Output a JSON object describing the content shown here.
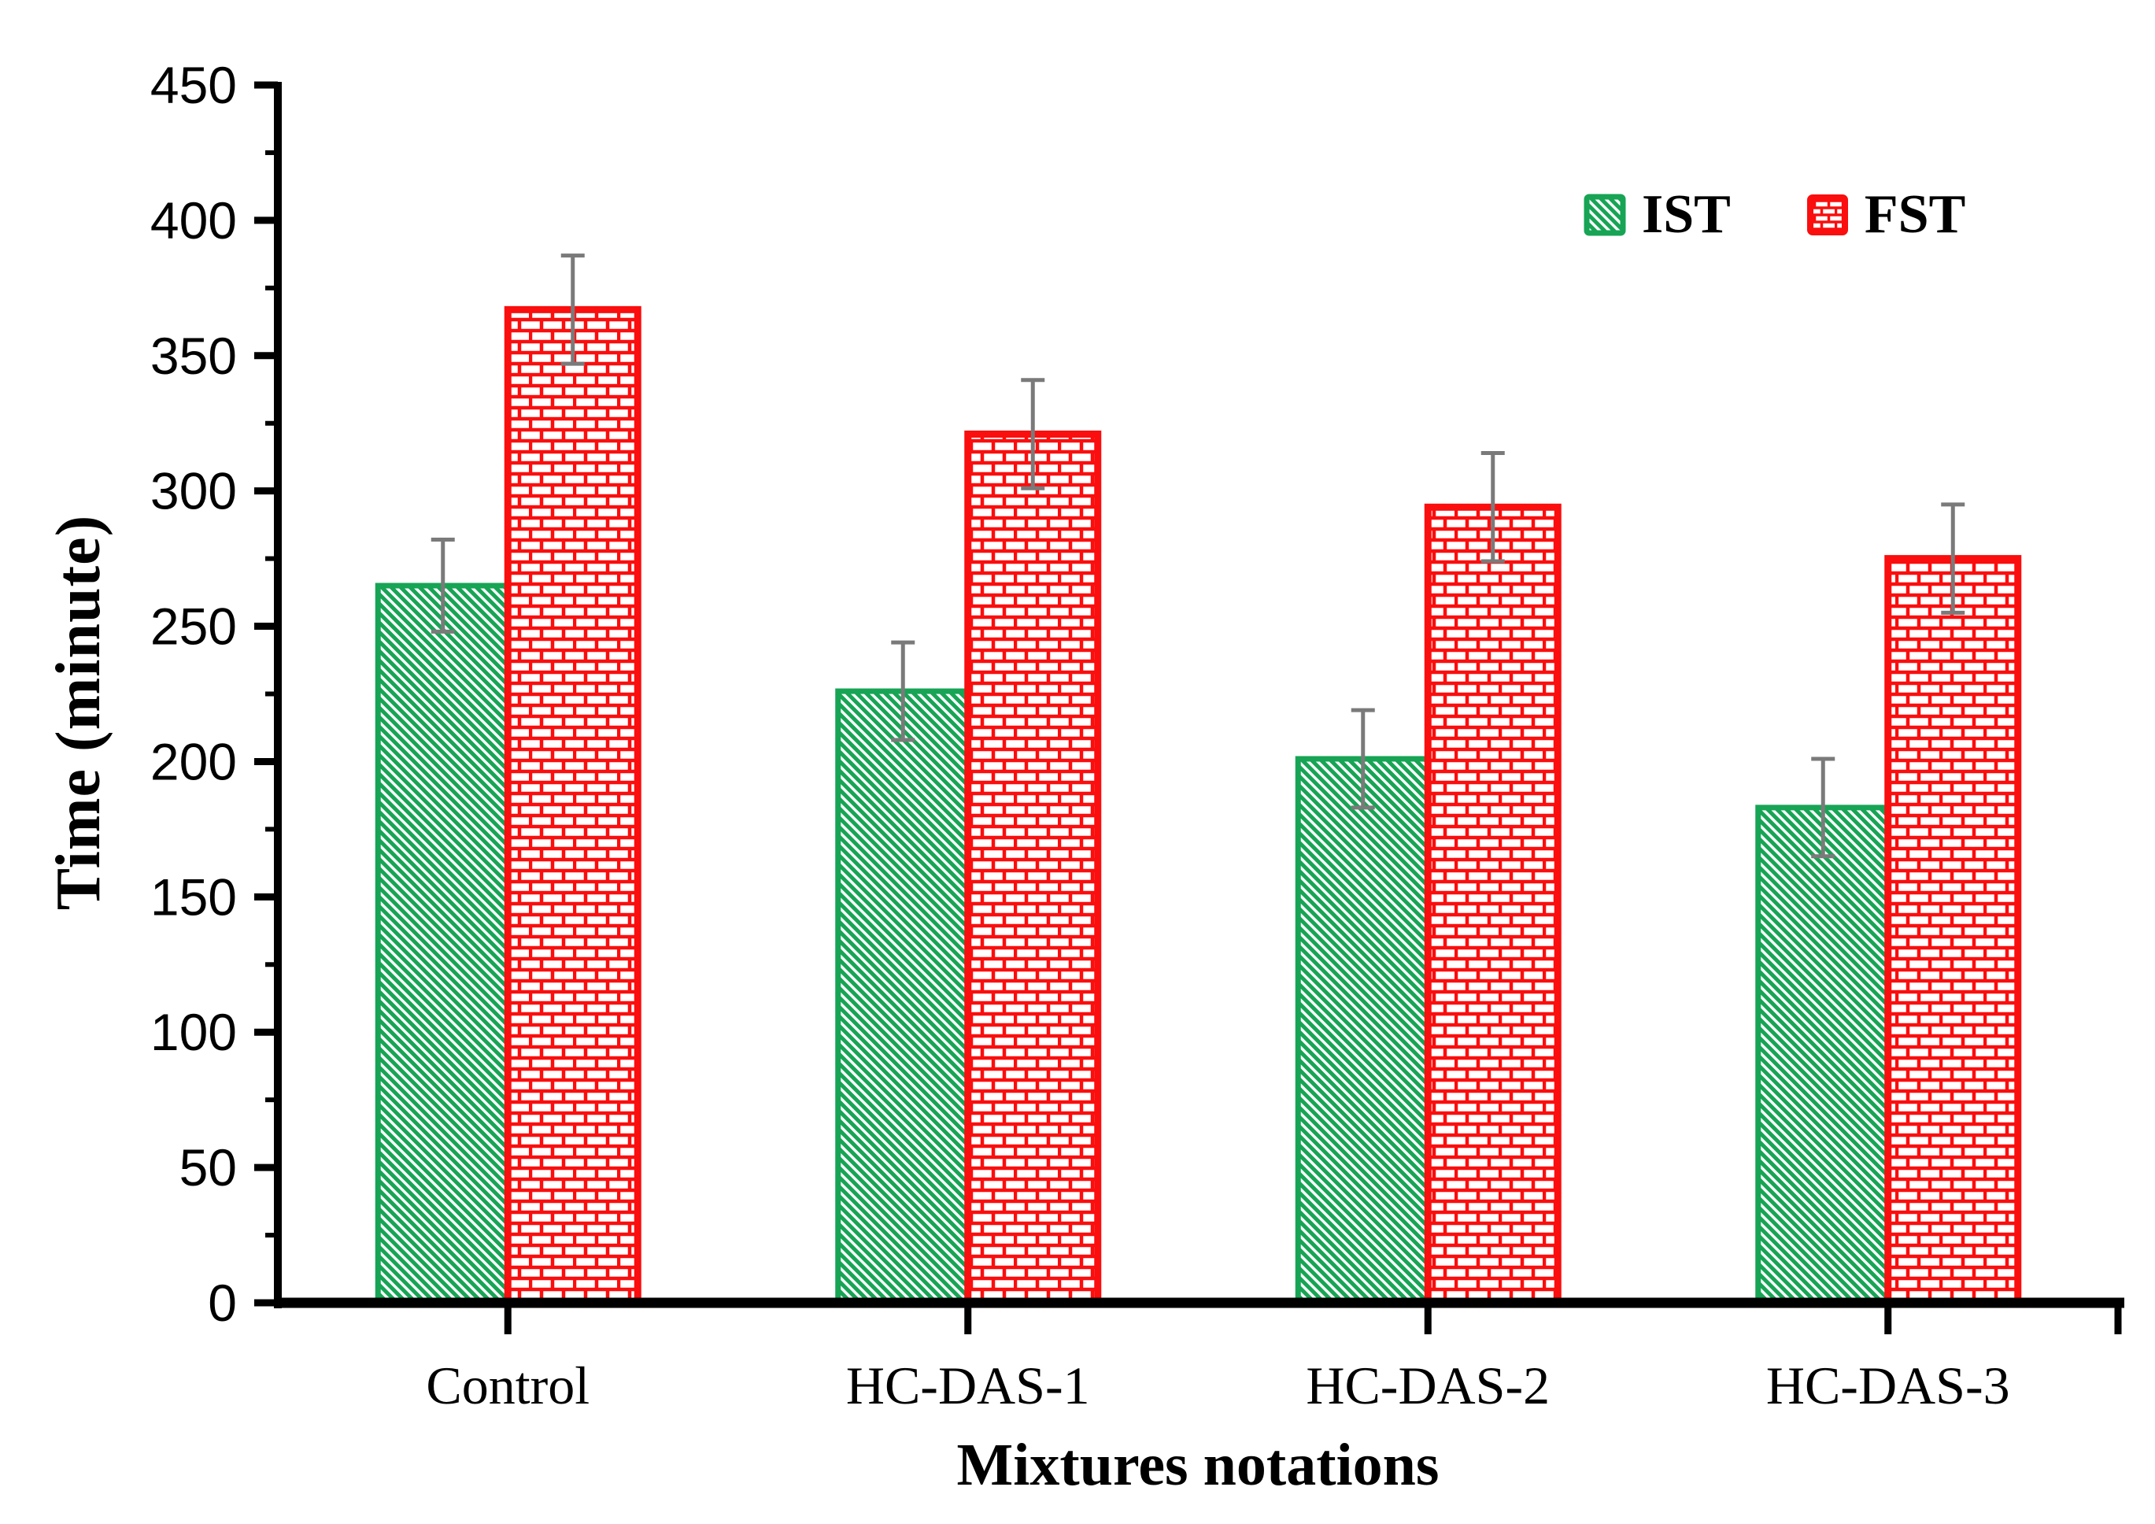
{
  "chart_data": {
    "type": "bar",
    "title": "",
    "xlabel": "Mixtures notations",
    "ylabel": "Time (minute)",
    "categories": [
      "Control",
      "HC-DAS-1",
      "HC-DAS-2",
      "HC-DAS-3"
    ],
    "series": [
      {
        "name": "IST",
        "values": [
          265,
          226,
          201,
          183
        ],
        "errors": [
          17,
          18,
          18,
          18
        ],
        "color": "#17a455",
        "pattern": "diagonal-hatch"
      },
      {
        "name": "FST",
        "values": [
          367,
          321,
          294,
          275
        ],
        "errors": [
          20,
          20,
          20,
          20
        ],
        "color": "#fa0e0e",
        "pattern": "brick"
      }
    ],
    "ylim": [
      0,
      450
    ],
    "ytick_step": 50,
    "yminor_step": 25,
    "y_ticks": [
      0,
      50,
      100,
      150,
      200,
      250,
      300,
      350,
      400,
      450
    ],
    "grid": false,
    "legend_position": "top-right",
    "error_bar_color": "#7a7a7a",
    "axis_color": "#000000",
    "background_color": "#ffffff"
  }
}
